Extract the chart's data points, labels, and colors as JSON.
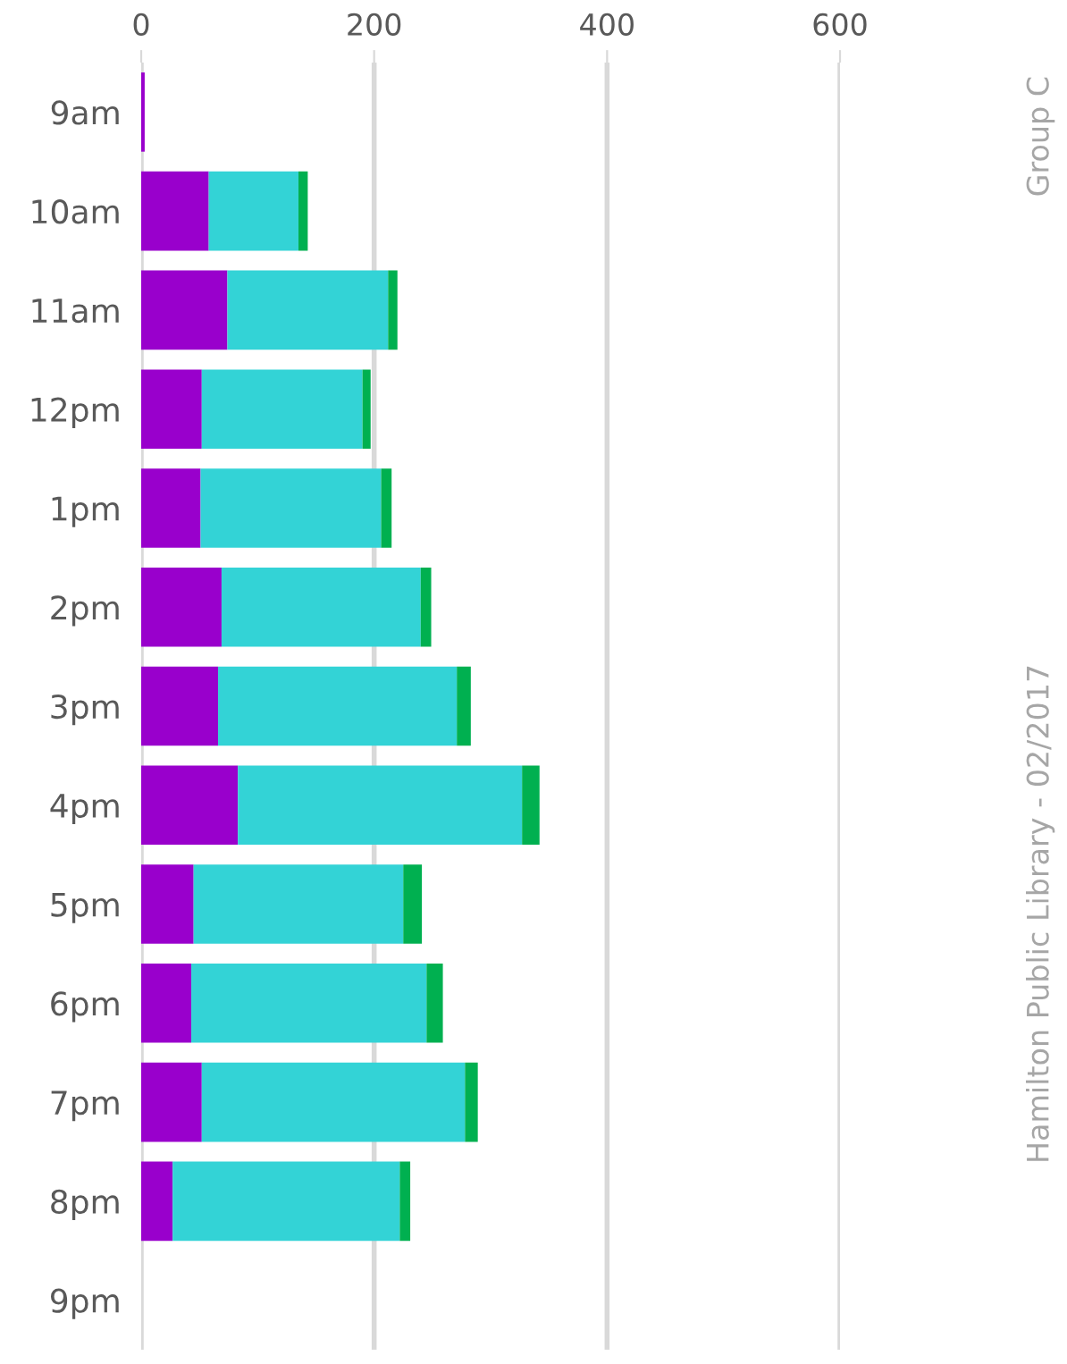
{
  "chart_data": {
    "type": "bar",
    "orientation": "horizontal",
    "stacked": true,
    "categories": [
      "9am",
      "10am",
      "11am",
      "12pm",
      "1pm",
      "2pm",
      "3pm",
      "4pm",
      "5pm",
      "6pm",
      "7pm",
      "8pm",
      "9pm"
    ],
    "series": [
      {
        "color": "#9900cc",
        "values": [
          3,
          58,
          74,
          52,
          51,
          69,
          66,
          83,
          45,
          43,
          52,
          27,
          0
        ]
      },
      {
        "color": "#33d3d6",
        "values": [
          0,
          77,
          138,
          138,
          155,
          171,
          205,
          244,
          180,
          202,
          226,
          195,
          0
        ]
      },
      {
        "color": "#00b050",
        "values": [
          0,
          8,
          8,
          7,
          9,
          9,
          12,
          15,
          16,
          14,
          11,
          9,
          0
        ]
      }
    ],
    "xlim": [
      0,
      600
    ],
    "xticks": [
      0,
      200,
      400,
      600
    ],
    "grid": "x",
    "legend": false,
    "annotations": [
      "Hamilton Public Library - 02/2017",
      "Group C"
    ]
  }
}
